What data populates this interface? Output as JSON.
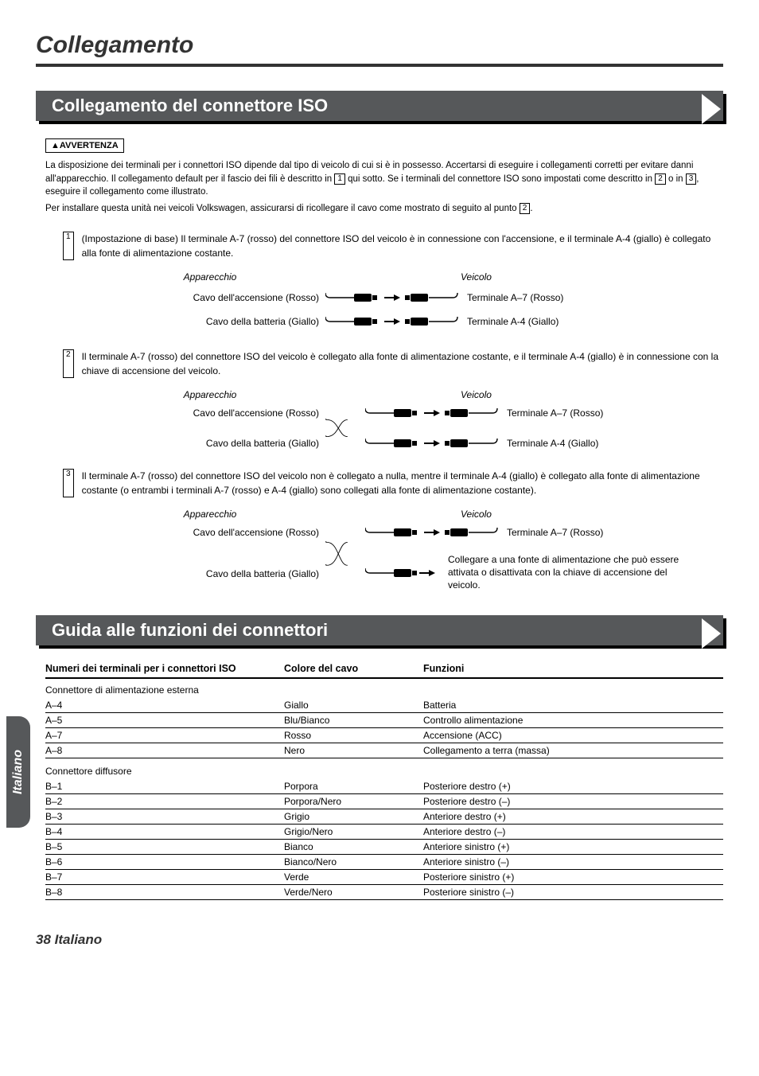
{
  "page": {
    "title": "Collegamento",
    "footer": "38 Italiano",
    "langTab": "Italiano"
  },
  "section1": {
    "title": "Collegamento del connettore ISO",
    "warnLabel": "▲AVVERTENZA",
    "warnLine1a": "La disposizione dei terminali per i connettori ISO dipende dal tipo di veicolo di cui si è in possesso. Accertarsi di eseguire i collegamenti corretti per evitare danni all'apparecchio. Il collegamento default per il fascio dei fili è descritto in ",
    "warnNum1": "1",
    "warnLine1b": " qui sotto. Se i terminali del connettore ISO sono impostati come descritto in ",
    "warnNum2": "2",
    "warnLine1c": " o in ",
    "warnNum3": "3",
    "warnLine1d": ", eseguire il collegamento come illustrato.",
    "warnLine2a": "Per installare questa unità nei veicoli Volkswagen, assicurarsi di ricollegare il cavo come mostrato di seguito al punto ",
    "warnNum4": "2",
    "warnLine2b": "."
  },
  "diagramCommon": {
    "leftHead": "Apparecchio",
    "rightHead": "Veicolo",
    "ignitionL": "Cavo dell'accensione (Rosso)",
    "batteryL": "Cavo della batteria (Giallo)",
    "termA7": "Terminale A–7 (Rosso)",
    "termA4": "Terminale A-4 (Giallo)"
  },
  "case1": {
    "num": "1",
    "text": "(Impostazione di base) Il terminale A-7 (rosso) del connettore ISO del veicolo è in connessione con l'accensione, e il terminale A-4 (giallo) è collegato alla fonte di alimentazione costante."
  },
  "case2": {
    "num": "2",
    "text": "Il terminale A-7 (rosso) del connettore ISO del veicolo è collegato alla fonte di alimentazione costante, e il terminale A-4 (giallo) è in connessione con la chiave di accensione del veicolo."
  },
  "case3": {
    "num": "3",
    "text": "Il terminale A-7 (rosso) del connettore ISO del veicolo non è collegato a nulla, mentre il terminale A-4 (giallo) è collegato alla fonte di alimentazione costante (o entrambi i terminali A-7 (rosso) e A-4 (giallo) sono collegati alla fonte di alimentazione costante).",
    "note": "Collegare a una fonte di alimentazione che può essere attivata o disattivata con la chiave di accensione del veicolo."
  },
  "section2": {
    "title": "Guida alle funzioni dei connettori",
    "head1": "Numeri dei terminali per i connettori ISO",
    "head2": "Colore del cavo",
    "head3": "Funzioni",
    "sub1": "Connettore di alimentazione esterna",
    "sub2": "Connettore diffusore",
    "rowsA": [
      {
        "t": "A–4",
        "c": "Giallo",
        "f": "Batteria"
      },
      {
        "t": "A–5",
        "c": "Blu/Bianco",
        "f": "Controllo alimentazione"
      },
      {
        "t": "A–7",
        "c": "Rosso",
        "f": "Accensione (ACC)"
      },
      {
        "t": "A–8",
        "c": "Nero",
        "f": "Collegamento a terra (massa)"
      }
    ],
    "rowsB": [
      {
        "t": "B–1",
        "c": "Porpora",
        "f": "Posteriore destro (+)"
      },
      {
        "t": "B–2",
        "c": "Porpora/Nero",
        "f": "Posteriore destro (–)"
      },
      {
        "t": "B–3",
        "c": "Grigio",
        "f": "Anteriore destro (+)"
      },
      {
        "t": "B–4",
        "c": "Grigio/Nero",
        "f": "Anteriore destro (–)"
      },
      {
        "t": "B–5",
        "c": "Bianco",
        "f": "Anteriore sinistro (+)"
      },
      {
        "t": "B–6",
        "c": "Bianco/Nero",
        "f": "Anteriore sinistro (–)"
      },
      {
        "t": "B–7",
        "c": "Verde",
        "f": "Posteriore sinistro (+)"
      },
      {
        "t": "B–8",
        "c": "Verde/Nero",
        "f": "Posteriore sinistro (–)"
      }
    ]
  },
  "colors": {
    "headerBar": "#56585a",
    "text": "#000000",
    "titleText": "#333333"
  }
}
